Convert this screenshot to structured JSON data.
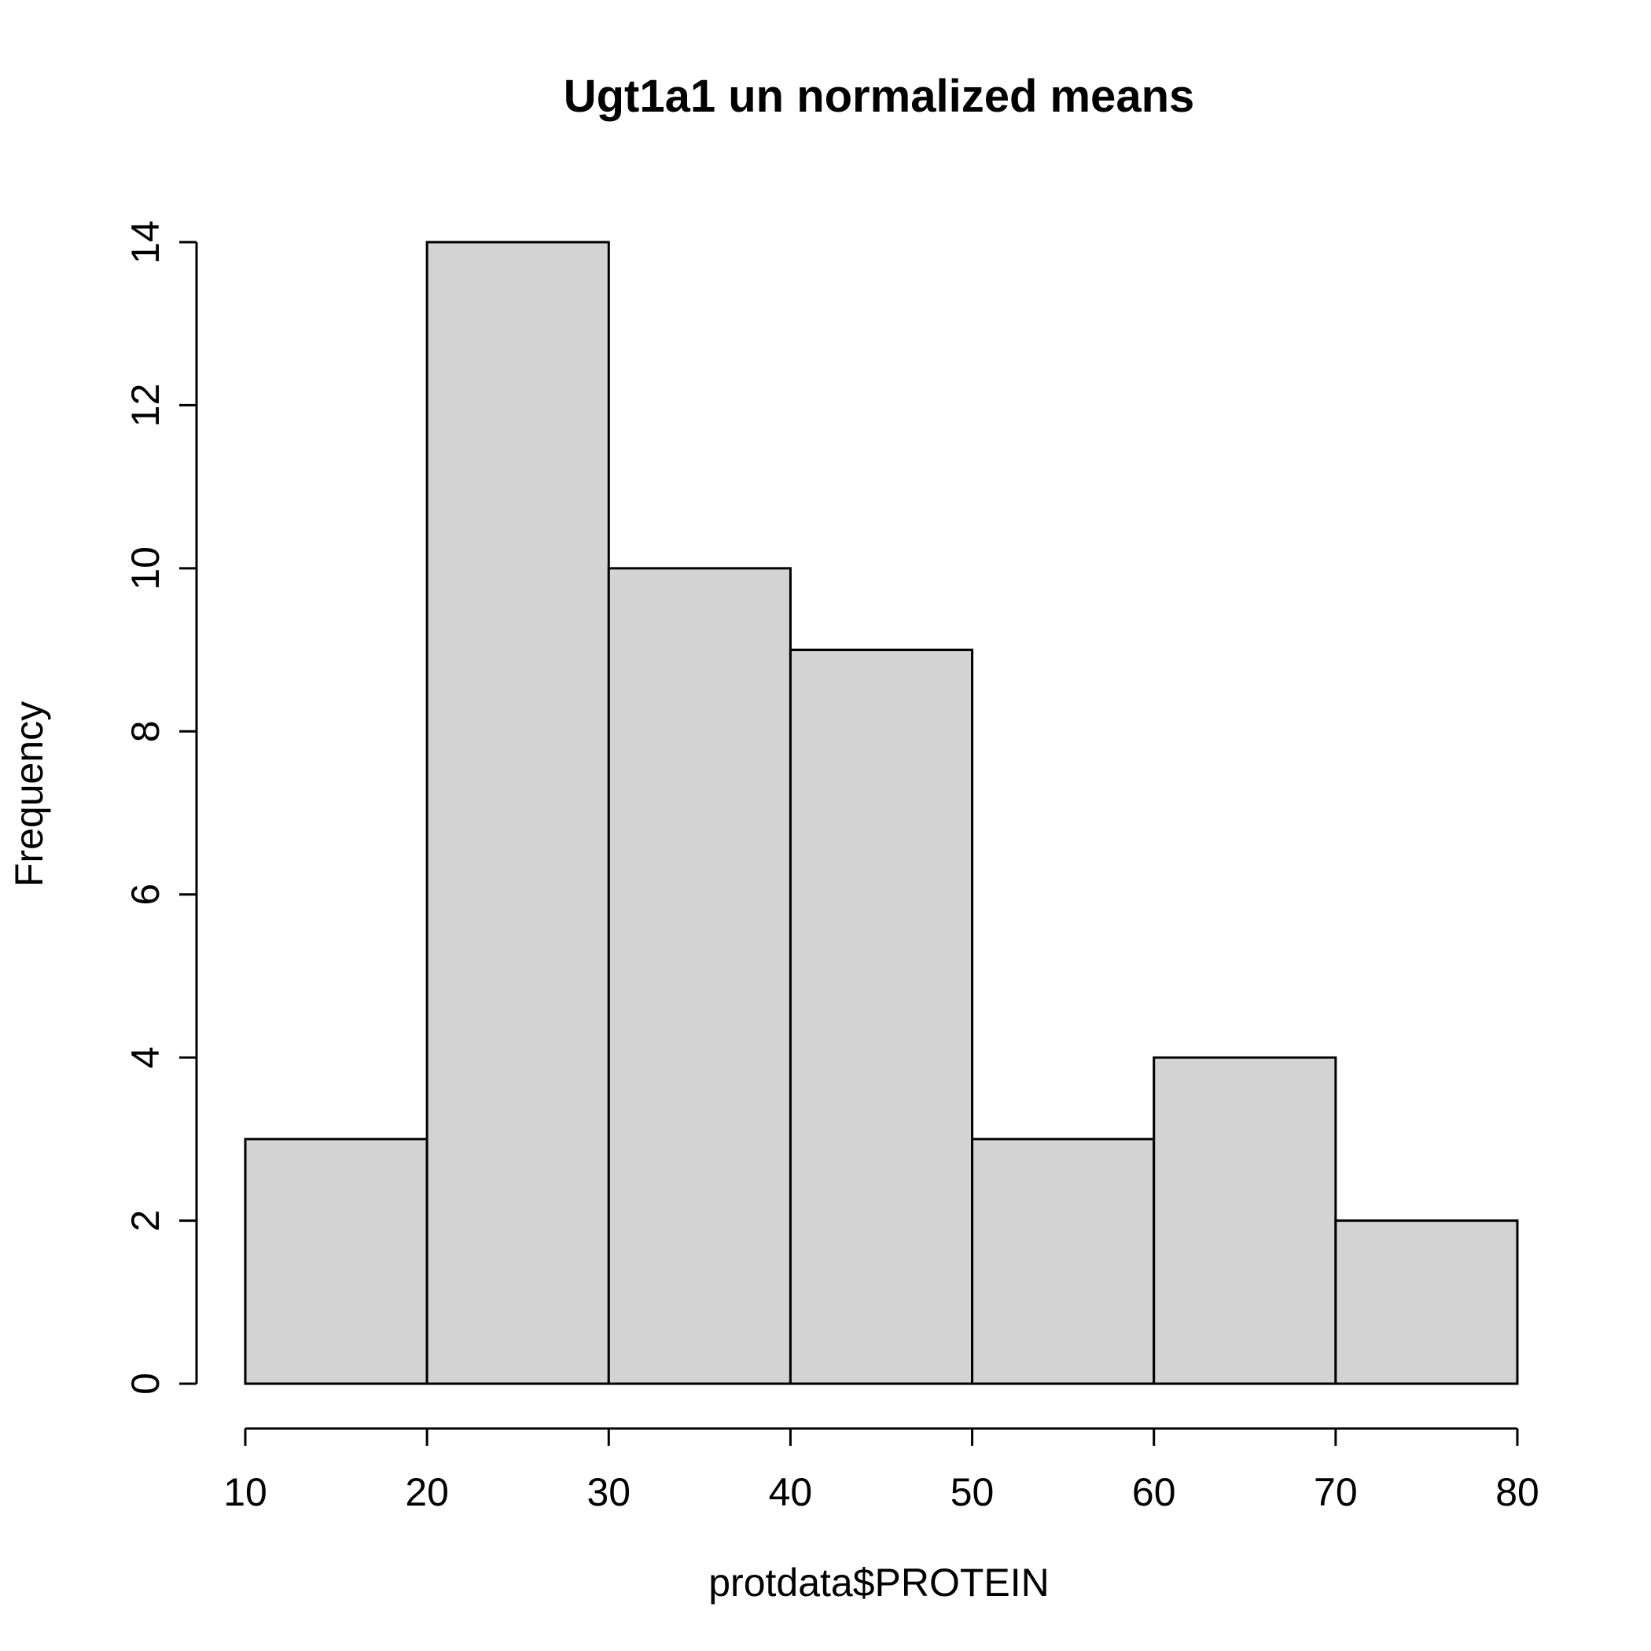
{
  "chart_data": {
    "type": "bar",
    "histogram": true,
    "title": "Ugt1a1 un normalized means",
    "xlabel": "protdata$PROTEIN",
    "ylabel": "Frequency",
    "bins": [
      {
        "from": 10,
        "to": 20,
        "count": 3
      },
      {
        "from": 20,
        "to": 30,
        "count": 14
      },
      {
        "from": 30,
        "to": 40,
        "count": 10
      },
      {
        "from": 40,
        "to": 50,
        "count": 9
      },
      {
        "from": 50,
        "to": 60,
        "count": 3
      },
      {
        "from": 60,
        "to": 70,
        "count": 4
      },
      {
        "from": 70,
        "to": 80,
        "count": 2
      }
    ],
    "xlim": [
      10,
      80
    ],
    "ylim": [
      0,
      14
    ],
    "xticks": [
      10,
      20,
      30,
      40,
      50,
      60,
      70,
      80
    ],
    "yticks": [
      0,
      2,
      4,
      6,
      8,
      10,
      12,
      14
    ],
    "bar_color": "#d3d3d3",
    "edge_color": "#000000",
    "grid": false
  }
}
